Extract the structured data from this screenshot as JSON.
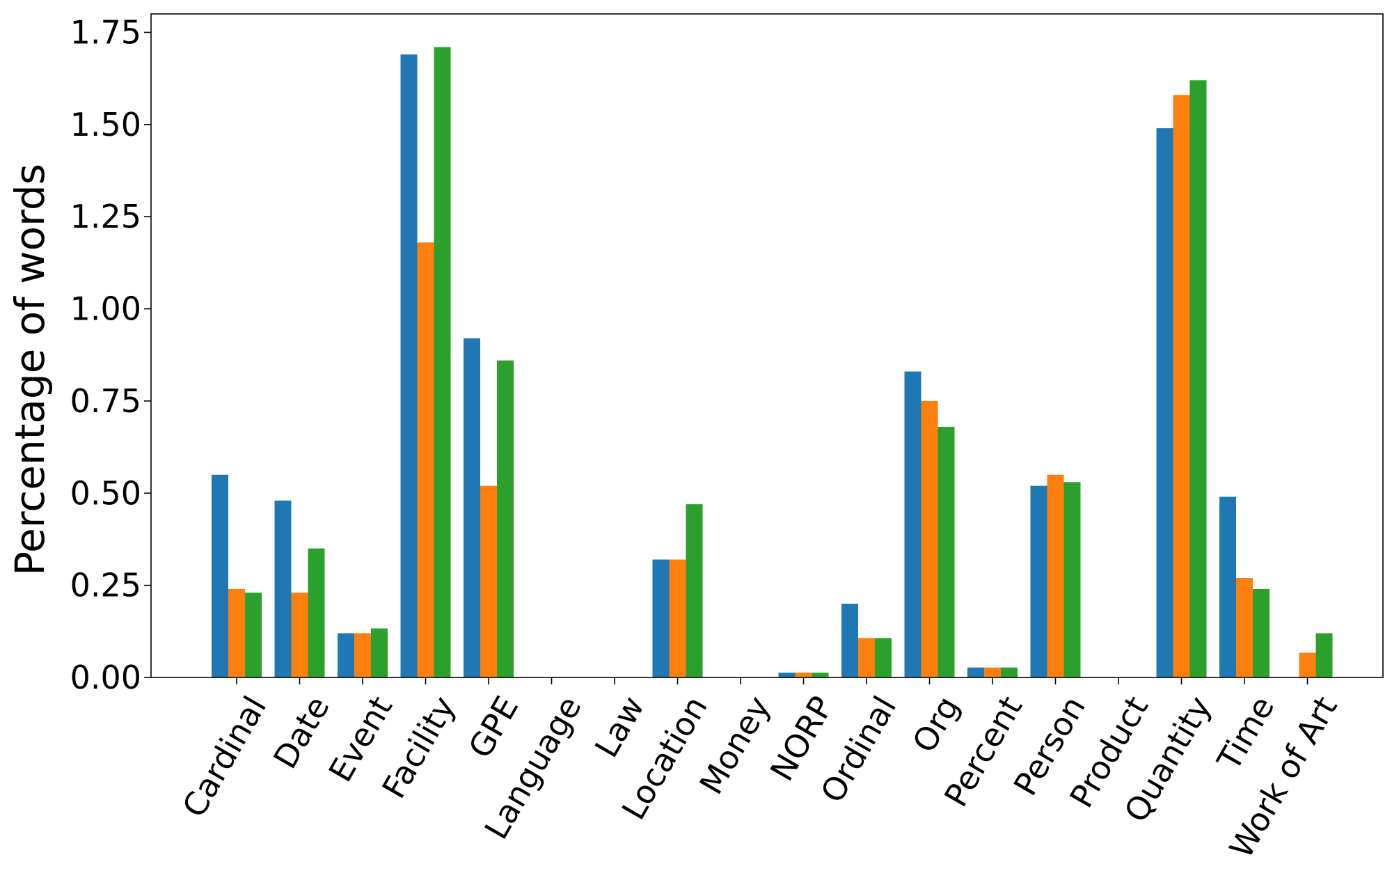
{
  "chart_data": {
    "type": "bar",
    "title": "",
    "xlabel": "",
    "ylabel": "Percentage of words",
    "ylim": [
      0,
      1.8
    ],
    "yticks": [
      "0.00",
      "0.25",
      "0.50",
      "0.75",
      "1.00",
      "1.25",
      "1.50",
      "1.75"
    ],
    "grid": false,
    "legend": "none",
    "categories": [
      "Cardinal",
      "Date",
      "Event",
      "Facility",
      "GPE",
      "Language",
      "Law",
      "Location",
      "Money",
      "NORP",
      "Ordinal",
      "Org",
      "Percent",
      "Person",
      "Product",
      "Quantity",
      "Time",
      "Work of Art"
    ],
    "series": [
      {
        "color": "#1f77b4",
        "values": [
          0.55,
          0.48,
          0.12,
          1.69,
          0.92,
          0,
          0,
          0.32,
          0,
          0.013,
          0.2,
          0.83,
          0.027,
          0.52,
          0,
          1.49,
          0.49,
          0
        ]
      },
      {
        "color": "#ff7f0e",
        "values": [
          0.24,
          0.23,
          0.12,
          1.18,
          0.52,
          0,
          0,
          0.32,
          0,
          0.013,
          0.107,
          0.75,
          0.027,
          0.55,
          0,
          1.58,
          0.27,
          0.067
        ]
      },
      {
        "color": "#2ca02c",
        "values": [
          0.23,
          0.35,
          0.133,
          1.71,
          0.86,
          0,
          0,
          0.47,
          0,
          0.013,
          0.107,
          0.68,
          0.027,
          0.53,
          0,
          1.62,
          0.24,
          0.12
        ]
      }
    ]
  }
}
